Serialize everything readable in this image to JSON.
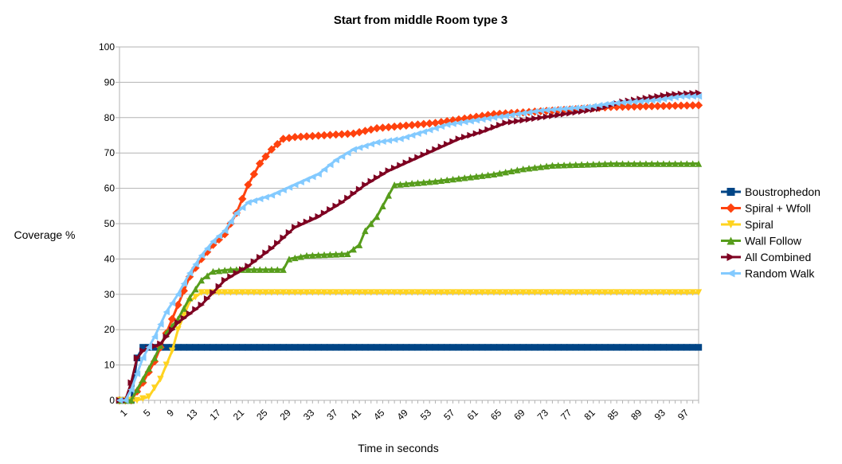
{
  "chart_data": {
    "type": "line",
    "title": "Start from middle Room type 3",
    "xlabel": "Time in seconds",
    "ylabel": "Coverage %",
    "xlim": [
      1,
      100
    ],
    "ylim": [
      0,
      100
    ],
    "y_ticks": [
      "0",
      "10",
      "20",
      "30",
      "40",
      "50",
      "60",
      "70",
      "80",
      "90",
      "100"
    ],
    "x_ticks": [
      "1",
      "5",
      "9",
      "13",
      "17",
      "21",
      "25",
      "29",
      "33",
      "37",
      "41",
      "45",
      "49",
      "53",
      "57",
      "61",
      "65",
      "69",
      "73",
      "77",
      "81",
      "85",
      "89",
      "93",
      "97"
    ],
    "grid": "horizontal",
    "legend_position": "right",
    "series": [
      {
        "name": "Boustrophedon",
        "color": "#004586",
        "marker": "square",
        "points": [
          [
            1,
            0
          ],
          [
            2,
            0
          ],
          [
            3,
            0
          ],
          [
            4,
            12
          ],
          [
            5,
            15
          ],
          [
            100,
            15
          ]
        ]
      },
      {
        "name": "Spiral + Wfoll",
        "color": "#ff420e",
        "marker": "diamond",
        "points": [
          [
            1,
            0
          ],
          [
            3,
            0
          ],
          [
            5,
            5
          ],
          [
            7,
            11
          ],
          [
            9,
            19
          ],
          [
            11,
            27
          ],
          [
            13,
            35
          ],
          [
            15,
            40
          ],
          [
            17,
            44
          ],
          [
            19,
            47
          ],
          [
            21,
            53
          ],
          [
            23,
            61
          ],
          [
            25,
            67
          ],
          [
            27,
            71
          ],
          [
            29,
            74
          ],
          [
            31,
            74.5
          ],
          [
            41,
            75.5
          ],
          [
            45,
            77
          ],
          [
            55,
            78.5
          ],
          [
            65,
            81
          ],
          [
            75,
            82
          ],
          [
            85,
            83
          ],
          [
            100,
            83.5
          ]
        ]
      },
      {
        "name": "Spiral",
        "color": "#ffd320",
        "marker": "triangle-down",
        "points": [
          [
            1,
            0
          ],
          [
            4,
            0
          ],
          [
            6,
            1
          ],
          [
            8,
            6
          ],
          [
            10,
            14
          ],
          [
            11,
            20
          ],
          [
            13,
            28
          ],
          [
            15,
            30.5
          ],
          [
            17,
            30.5
          ],
          [
            100,
            30.5
          ]
        ]
      },
      {
        "name": "Wall Follow",
        "color": "#579d1c",
        "marker": "triangle-up",
        "points": [
          [
            1,
            0
          ],
          [
            3,
            0
          ],
          [
            5,
            6
          ],
          [
            7,
            12
          ],
          [
            9,
            19
          ],
          [
            11,
            23
          ],
          [
            13,
            29
          ],
          [
            15,
            34
          ],
          [
            17,
            36.5
          ],
          [
            20,
            37
          ],
          [
            29,
            37
          ],
          [
            30,
            40
          ],
          [
            33,
            41
          ],
          [
            40,
            41.5
          ],
          [
            42,
            44
          ],
          [
            43,
            48
          ],
          [
            45,
            52
          ],
          [
            47,
            58
          ],
          [
            48,
            61
          ],
          [
            55,
            62
          ],
          [
            60,
            63
          ],
          [
            65,
            64
          ],
          [
            70,
            65.5
          ],
          [
            75,
            66.5
          ],
          [
            85,
            67
          ],
          [
            100,
            67
          ]
        ]
      },
      {
        "name": "All Combined",
        "color": "#7e0021",
        "marker": "triangle-right",
        "points": [
          [
            1,
            0
          ],
          [
            2,
            0
          ],
          [
            3,
            5
          ],
          [
            4,
            12
          ],
          [
            5,
            14
          ],
          [
            8,
            16
          ],
          [
            11,
            22
          ],
          [
            15,
            27
          ],
          [
            19,
            34
          ],
          [
            23,
            38
          ],
          [
            27,
            43
          ],
          [
            31,
            49
          ],
          [
            35,
            52
          ],
          [
            39,
            56
          ],
          [
            43,
            61
          ],
          [
            47,
            65
          ],
          [
            51,
            68
          ],
          [
            55,
            71
          ],
          [
            59,
            74
          ],
          [
            63,
            76
          ],
          [
            67,
            78.5
          ],
          [
            71,
            79.5
          ],
          [
            75,
            80.5
          ],
          [
            79,
            81.5
          ],
          [
            83,
            82.5
          ],
          [
            87,
            84.5
          ],
          [
            91,
            85.5
          ],
          [
            95,
            86.5
          ],
          [
            100,
            87
          ]
        ]
      },
      {
        "name": "Random Walk",
        "color": "#83caff",
        "marker": "triangle-left",
        "points": [
          [
            1,
            0
          ],
          [
            2,
            0
          ],
          [
            3,
            3
          ],
          [
            5,
            12
          ],
          [
            7,
            18
          ],
          [
            9,
            25
          ],
          [
            11,
            30
          ],
          [
            13,
            36
          ],
          [
            15,
            41
          ],
          [
            17,
            45
          ],
          [
            19,
            48
          ],
          [
            21,
            53
          ],
          [
            23,
            56
          ],
          [
            27,
            58
          ],
          [
            31,
            61
          ],
          [
            35,
            64
          ],
          [
            38,
            68
          ],
          [
            41,
            71
          ],
          [
            45,
            73
          ],
          [
            49,
            74
          ],
          [
            53,
            76
          ],
          [
            57,
            78
          ],
          [
            61,
            79
          ],
          [
            65,
            80
          ],
          [
            69,
            81
          ],
          [
            73,
            82
          ],
          [
            77,
            82.5
          ],
          [
            81,
            83
          ],
          [
            85,
            84
          ],
          [
            89,
            84.5
          ],
          [
            93,
            85
          ],
          [
            97,
            86
          ],
          [
            100,
            86
          ]
        ]
      }
    ]
  }
}
